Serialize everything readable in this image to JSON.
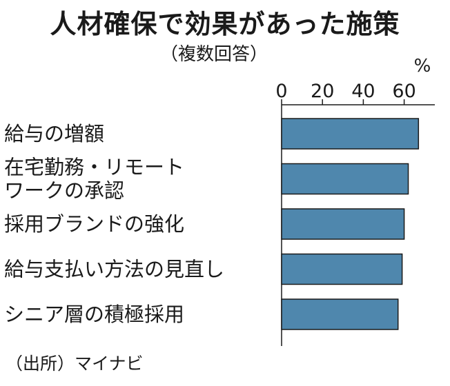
{
  "chart_data": {
    "type": "bar",
    "orientation": "horizontal",
    "title": "人材確保で効果があった施策",
    "subtitle": "（複数回答）",
    "unit": "%",
    "categories": [
      [
        "給与の増額"
      ],
      [
        "在宅勤務・リモート",
        "ワークの承認"
      ],
      [
        "採用ブランドの強化"
      ],
      [
        "給与支払い方法の見直し"
      ],
      [
        "シニア層の積極採用"
      ]
    ],
    "values": [
      67,
      62,
      60,
      59,
      57
    ],
    "xticks": [
      "0",
      "20",
      "40",
      "60"
    ],
    "xlim": [
      0,
      75
    ],
    "bar_color": "#4f87ad",
    "source": "（出所）マイナビ"
  }
}
